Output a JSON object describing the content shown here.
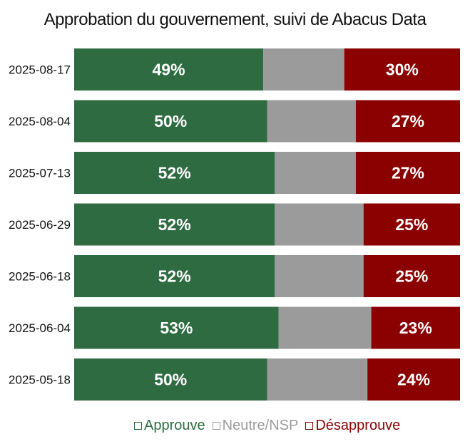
{
  "chart_data": {
    "type": "bar",
    "orientation": "horizontal",
    "stacked": true,
    "title": "Approbation du gouvernement, suivi de Abacus Data",
    "categories": [
      "2025-08-17",
      "2025-08-04",
      "2025-07-13",
      "2025-06-29",
      "2025-06-18",
      "2025-06-04",
      "2025-05-18"
    ],
    "series": [
      {
        "name": "Approuve",
        "color": "#2e6b41",
        "values": [
          49,
          50,
          52,
          52,
          52,
          53,
          50
        ],
        "labels": [
          "49%",
          "50%",
          "52%",
          "52%",
          "52%",
          "53%",
          "50%"
        ]
      },
      {
        "name": "Neutre/NSP",
        "color": "#9b9b9b",
        "values": [
          21,
          23,
          21,
          23,
          23,
          24,
          26
        ]
      },
      {
        "name": "Désapprouve",
        "color": "#8b0000",
        "values": [
          30,
          27,
          27,
          25,
          25,
          23,
          24
        ],
        "labels": [
          "30%",
          "27%",
          "27%",
          "25%",
          "25%",
          "23%",
          "24%"
        ]
      }
    ],
    "xlim": [
      0,
      100
    ],
    "grid": false,
    "legend_position": "bottom"
  }
}
